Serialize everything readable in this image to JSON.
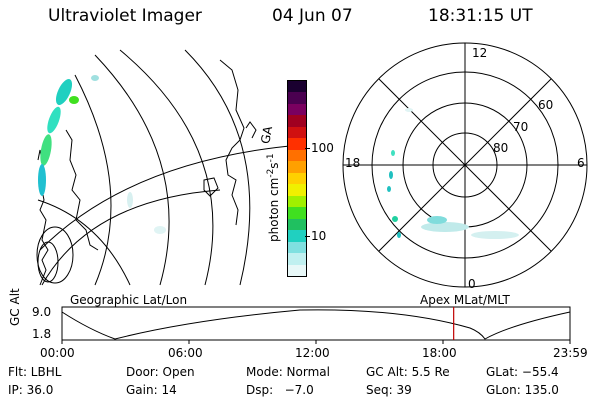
{
  "header": {
    "title": "Ultraviolet Imager",
    "date": "04 Jun 07",
    "time": "18:31:15 UT"
  },
  "colorbar": {
    "label": "photon cm",
    "label_exp1": "-2",
    "label_s": "s",
    "label_exp2": "-1",
    "ticks": [
      "100",
      "10"
    ],
    "colors": [
      "#1a0030",
      "#4a0050",
      "#7a0060",
      "#a00020",
      "#d01010",
      "#ff3000",
      "#ff7000",
      "#ffa000",
      "#ffd000",
      "#f0f000",
      "#a0f000",
      "#40e020",
      "#20c060",
      "#20d0c0",
      "#80e0e0",
      "#c0f0f0",
      "#e8f8f8"
    ]
  },
  "polar": {
    "labels": [
      "12",
      "18",
      "6",
      "0",
      "60",
      "70",
      "80"
    ]
  },
  "map_labels": {
    "geographic": "Geographic Lat/Lon",
    "apex": "Apex MLat/MLT"
  },
  "timeline": {
    "ylabel": "GC Alt",
    "ymax": "9.0",
    "ymin": "1.8",
    "ticks": [
      "00:00",
      "06:00",
      "12:00",
      "18:00",
      "23:59"
    ],
    "current_time_fraction": 0.771
  },
  "footer": {
    "flt": "Flt: LBHL",
    "door": "Door: Open",
    "mode": "Mode: Normal",
    "gcalt": "GC Alt: 5.5 Re",
    "glat": "GLat: −55.4",
    "ip": "IP: 36.0",
    "gain": "Gain: 14",
    "dsp": "Dsp:   −7.0",
    "seq": "Seq: 39",
    "glon": "GLon: 135.0"
  }
}
